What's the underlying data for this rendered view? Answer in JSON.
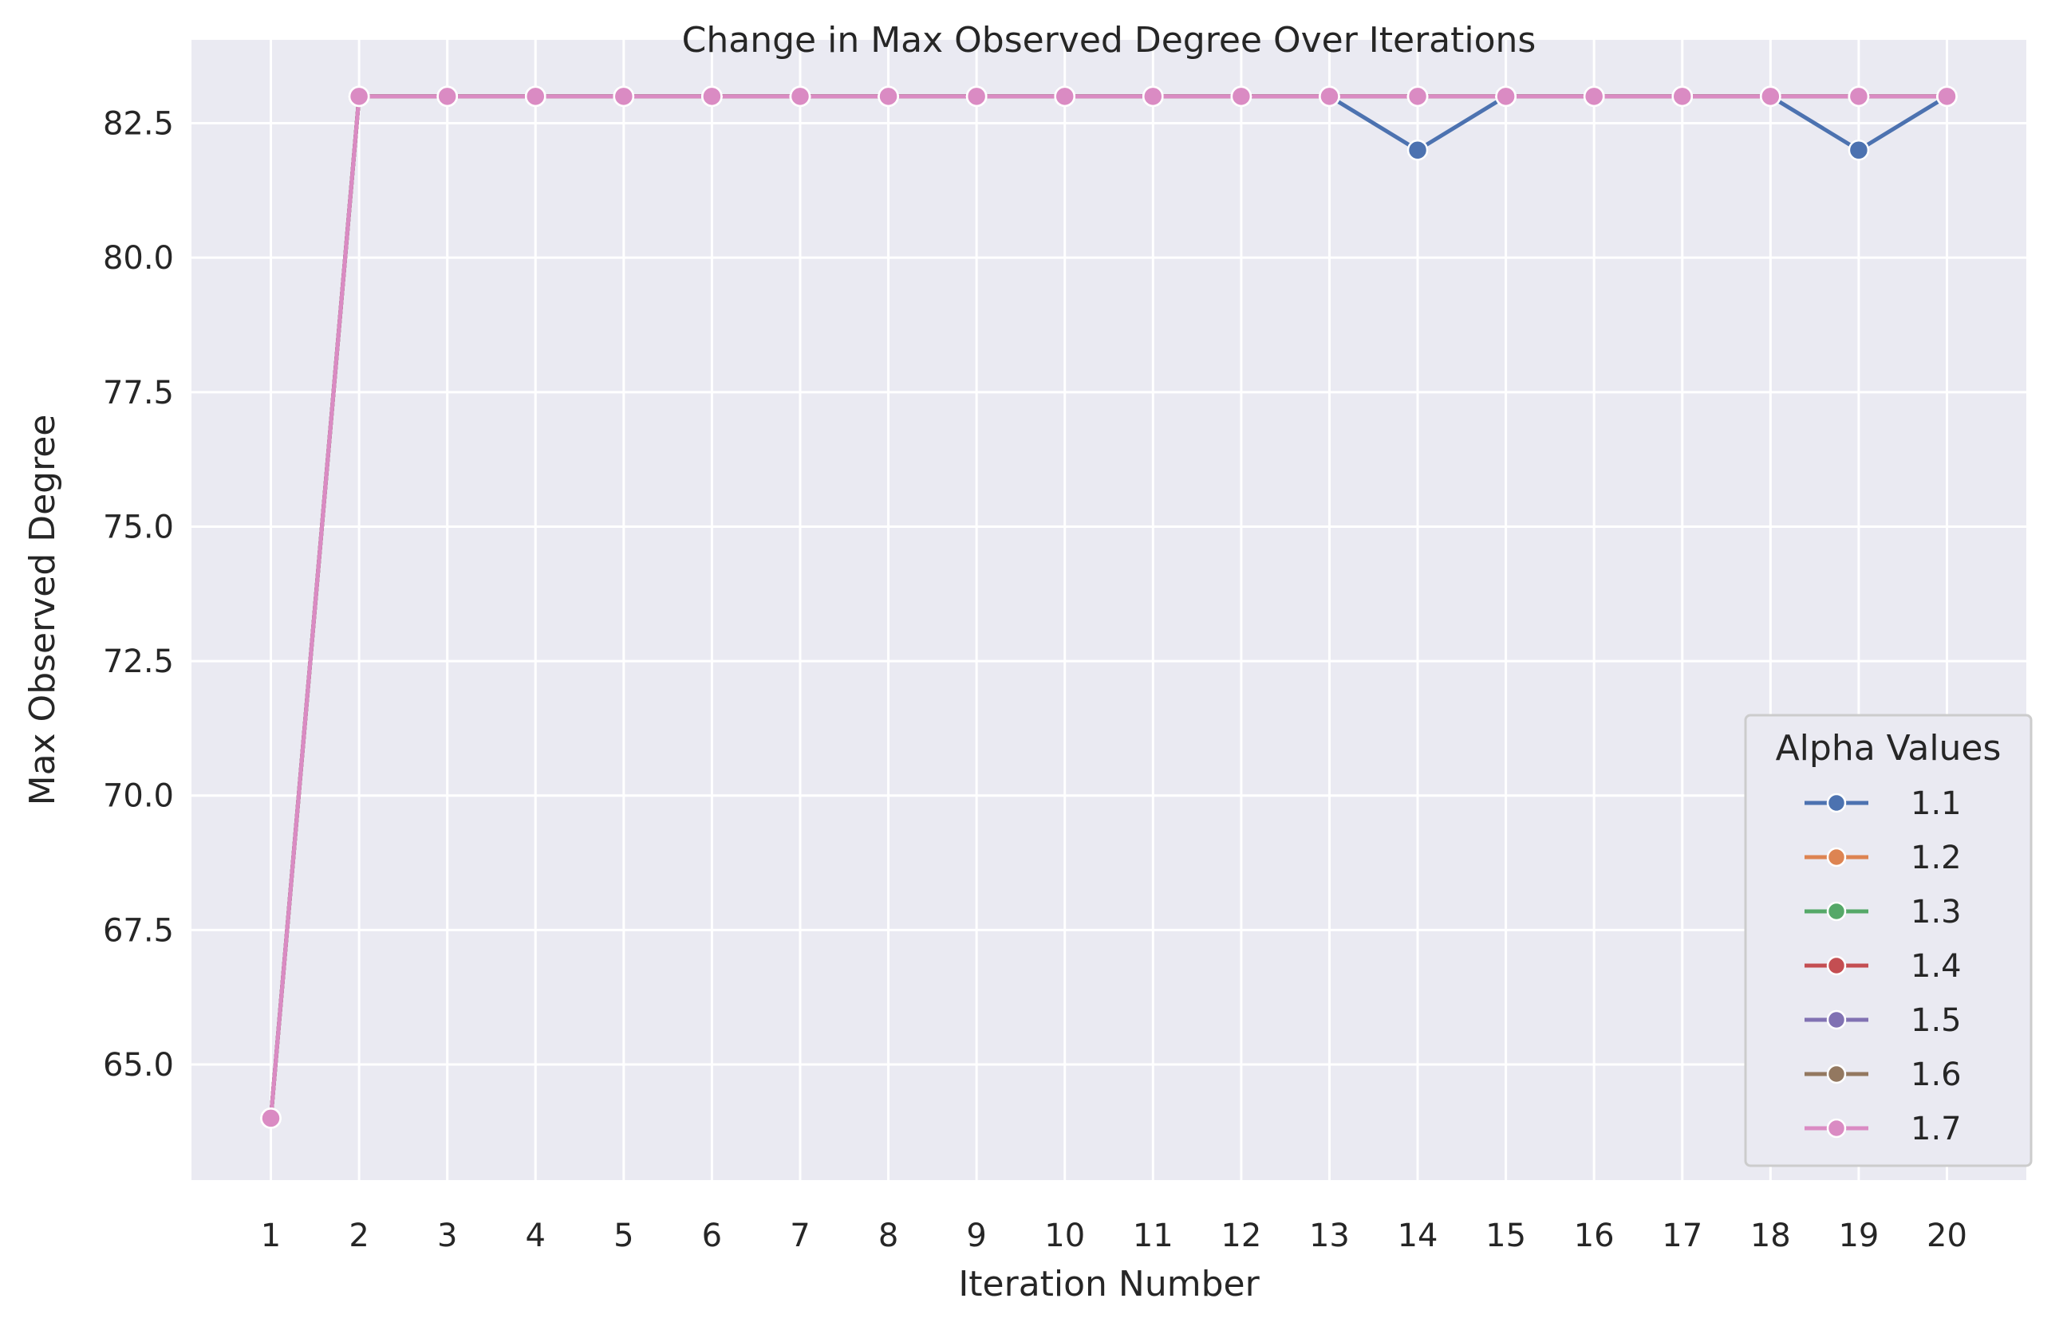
{
  "chart_data": {
    "type": "line",
    "title": "Change in Max Observed Degree Over Iterations",
    "xlabel": "Iteration Number",
    "ylabel": "Max Observed Degree",
    "x": [
      1,
      2,
      3,
      4,
      5,
      6,
      7,
      8,
      9,
      10,
      11,
      12,
      13,
      14,
      15,
      16,
      17,
      18,
      19,
      20
    ],
    "x_ticks": [
      "1",
      "2",
      "3",
      "4",
      "5",
      "6",
      "7",
      "8",
      "9",
      "10",
      "11",
      "12",
      "13",
      "14",
      "15",
      "16",
      "17",
      "18",
      "19",
      "20"
    ],
    "xlim": [
      0.1,
      20.9
    ],
    "ylim": [
      62.85,
      84.05
    ],
    "y_ticks": [
      "65.0",
      "67.5",
      "70.0",
      "72.5",
      "75.0",
      "77.5",
      "80.0",
      "82.5"
    ],
    "grid": true,
    "background": "#eaeaf2",
    "markers": "circle",
    "legend": {
      "title": "Alpha Values",
      "placement": "lower-right"
    },
    "series": [
      {
        "name": "1.1",
        "color": "#4c72b0",
        "values": [
          64,
          83,
          83,
          83,
          83,
          83,
          83,
          83,
          83,
          83,
          83,
          83,
          83,
          82,
          83,
          83,
          83,
          83,
          82,
          83
        ]
      },
      {
        "name": "1.2",
        "color": "#dd8452",
        "values": [
          64,
          83,
          83,
          83,
          83,
          83,
          83,
          83,
          83,
          83,
          83,
          83,
          83,
          83,
          83,
          83,
          83,
          83,
          83,
          83
        ]
      },
      {
        "name": "1.3",
        "color": "#55a868",
        "values": [
          64,
          83,
          83,
          83,
          83,
          83,
          83,
          83,
          83,
          83,
          83,
          83,
          83,
          83,
          83,
          83,
          83,
          83,
          83,
          83
        ]
      },
      {
        "name": "1.4",
        "color": "#c44e52",
        "values": [
          64,
          83,
          83,
          83,
          83,
          83,
          83,
          83,
          83,
          83,
          83,
          83,
          83,
          83,
          83,
          83,
          83,
          83,
          83,
          83
        ]
      },
      {
        "name": "1.5",
        "color": "#8172b3",
        "values": [
          64,
          83,
          83,
          83,
          83,
          83,
          83,
          83,
          83,
          83,
          83,
          83,
          83,
          83,
          83,
          83,
          83,
          83,
          83,
          83
        ]
      },
      {
        "name": "1.6",
        "color": "#937860",
        "values": [
          64,
          83,
          83,
          83,
          83,
          83,
          83,
          83,
          83,
          83,
          83,
          83,
          83,
          83,
          83,
          83,
          83,
          83,
          83,
          83
        ]
      },
      {
        "name": "1.7",
        "color": "#da8bc3",
        "values": [
          64,
          83,
          83,
          83,
          83,
          83,
          83,
          83,
          83,
          83,
          83,
          83,
          83,
          83,
          83,
          83,
          83,
          83,
          83,
          83
        ]
      }
    ]
  }
}
